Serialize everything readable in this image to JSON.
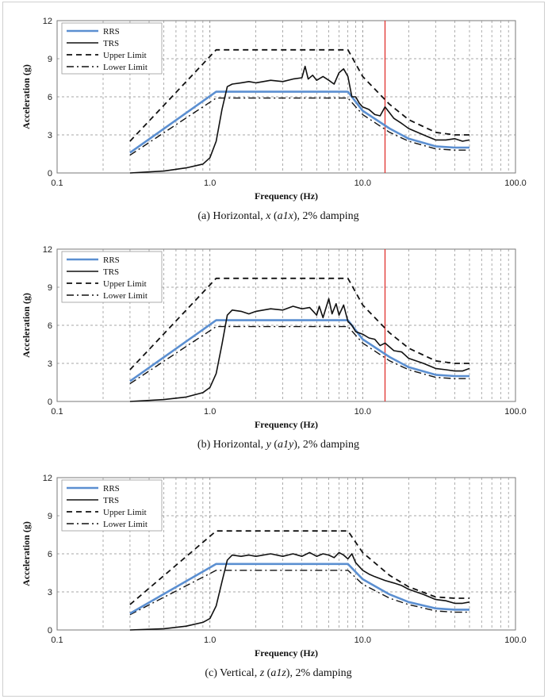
{
  "figure": {
    "colors": {
      "rrs": "#5b8fd1",
      "trs": "#111111",
      "limits": "#111111",
      "marker": "#e0312e",
      "grid": "#8a8a8a",
      "frame": "#cfcfcf"
    }
  },
  "chart_data": [
    {
      "type": "line",
      "caption": "(a)  Horizontal, x (a1x), 2% damping",
      "caption_parts": {
        "prefix": "(a)  Horizontal, ",
        "var": "x",
        "mid": " (",
        "var2": "a1x",
        "suffix": "), 2% damping"
      },
      "xlabel": "Frequency (Hz)",
      "ylabel": "Acceleration (g)",
      "xscale": "log",
      "xlim": [
        0.1,
        100
      ],
      "ylim": [
        0,
        12
      ],
      "xticks": [
        "0.1",
        "1.0",
        "10.0",
        "100.0"
      ],
      "yticks": [
        "0",
        "3",
        "6",
        "9",
        "12"
      ],
      "grid": "vertical-dashed",
      "legend": "top-left",
      "vline": 14,
      "series": [
        {
          "name": "RRS",
          "style": "solid-blue",
          "x": [
            0.3,
            1.1,
            8,
            10,
            15,
            20,
            30,
            40,
            50
          ],
          "y": [
            1.6,
            6.4,
            6.4,
            4.9,
            3.5,
            2.7,
            2.1,
            2.0,
            2.0
          ]
        },
        {
          "name": "TRS",
          "style": "solid-black",
          "x": [
            0.3,
            0.5,
            0.7,
            0.9,
            1.0,
            1.1,
            1.2,
            1.3,
            1.4,
            1.6,
            1.8,
            2.0,
            2.5,
            3.0,
            3.5,
            4.0,
            4.2,
            4.4,
            4.7,
            5.0,
            5.5,
            6.0,
            6.5,
            7.0,
            7.5,
            8.0,
            8.5,
            9.0,
            9.5,
            10,
            11,
            12,
            13,
            14,
            16,
            18,
            20,
            25,
            30,
            35,
            40,
            45,
            50
          ],
          "y": [
            0.0,
            0.15,
            0.4,
            0.7,
            1.2,
            2.5,
            5.0,
            6.8,
            7.0,
            7.1,
            7.2,
            7.1,
            7.3,
            7.2,
            7.4,
            7.5,
            8.4,
            7.4,
            7.7,
            7.3,
            7.6,
            7.3,
            7.0,
            7.9,
            8.2,
            7.6,
            6.0,
            6.0,
            5.5,
            5.2,
            5.0,
            4.6,
            4.5,
            5.2,
            4.3,
            3.9,
            3.5,
            3.0,
            2.6,
            2.6,
            2.7,
            2.5,
            2.6
          ]
        },
        {
          "name": "Upper Limit",
          "style": "dashed",
          "x": [
            0.3,
            1.1,
            8,
            10,
            15,
            20,
            30,
            40,
            50
          ],
          "y": [
            2.5,
            9.7,
            9.7,
            7.6,
            5.4,
            4.2,
            3.2,
            3.0,
            3.0
          ]
        },
        {
          "name": "Lower Limit",
          "style": "dash-dot",
          "x": [
            0.3,
            1.1,
            8,
            10,
            15,
            20,
            30,
            40,
            50
          ],
          "y": [
            1.4,
            5.9,
            5.9,
            4.6,
            3.2,
            2.5,
            1.9,
            1.8,
            1.8
          ]
        }
      ]
    },
    {
      "type": "line",
      "caption": "(b)  Horizontal, y (a1y), 2% damping",
      "caption_parts": {
        "prefix": "(b)  Horizontal, ",
        "var": "y",
        "mid": " (",
        "var2": "a1y",
        "suffix": "), 2% damping"
      },
      "xlabel": "Frequency (Hz)",
      "ylabel": "Acceleration (g)",
      "xscale": "log",
      "xlim": [
        0.1,
        100
      ],
      "ylim": [
        0,
        12
      ],
      "xticks": [
        "0.1",
        "1.0",
        "10.0",
        "100.0"
      ],
      "yticks": [
        "0",
        "3",
        "6",
        "9",
        "12"
      ],
      "grid": "vertical-dashed",
      "legend": "top-left",
      "vline": 14,
      "series": [
        {
          "name": "RRS",
          "style": "solid-blue",
          "x": [
            0.3,
            1.1,
            8,
            10,
            15,
            20,
            30,
            40,
            50
          ],
          "y": [
            1.6,
            6.4,
            6.4,
            4.9,
            3.5,
            2.7,
            2.1,
            2.0,
            2.0
          ]
        },
        {
          "name": "TRS",
          "style": "solid-black",
          "x": [
            0.3,
            0.5,
            0.7,
            0.9,
            1.0,
            1.1,
            1.2,
            1.3,
            1.4,
            1.6,
            1.8,
            2.0,
            2.5,
            3.0,
            3.5,
            4.0,
            4.5,
            5.0,
            5.2,
            5.5,
            6.0,
            6.3,
            6.7,
            7.0,
            7.5,
            8.0,
            8.5,
            9.0,
            10,
            11,
            12,
            13,
            14,
            16,
            18,
            20,
            25,
            30,
            35,
            40,
            45,
            50
          ],
          "y": [
            0.0,
            0.15,
            0.35,
            0.7,
            1.1,
            2.2,
            4.5,
            6.8,
            7.2,
            7.1,
            6.9,
            7.1,
            7.3,
            7.2,
            7.5,
            7.3,
            7.4,
            6.8,
            7.5,
            6.6,
            8.1,
            6.9,
            7.7,
            6.8,
            7.6,
            6.3,
            6.0,
            5.5,
            5.3,
            5.0,
            4.9,
            4.4,
            4.6,
            4.0,
            3.9,
            3.4,
            3.0,
            2.6,
            2.5,
            2.4,
            2.4,
            2.6
          ]
        },
        {
          "name": "Upper Limit",
          "style": "dashed",
          "x": [
            0.3,
            1.1,
            8,
            10,
            15,
            20,
            30,
            40,
            50
          ],
          "y": [
            2.5,
            9.7,
            9.7,
            7.6,
            5.4,
            4.2,
            3.2,
            3.0,
            3.0
          ]
        },
        {
          "name": "Lower Limit",
          "style": "dash-dot",
          "x": [
            0.3,
            1.1,
            8,
            10,
            15,
            20,
            30,
            40,
            50
          ],
          "y": [
            1.4,
            5.9,
            5.9,
            4.6,
            3.2,
            2.5,
            1.9,
            1.8,
            1.8
          ]
        }
      ]
    },
    {
      "type": "line",
      "caption": "(c)  Vertical, z (a1z), 2% damping",
      "caption_parts": {
        "prefix": "(c)  Vertical, ",
        "var": "z",
        "mid": " (",
        "var2": "a1z",
        "suffix": "), 2% damping"
      },
      "xlabel": "Frequency (Hz)",
      "ylabel": "Acceleration (g)",
      "xscale": "log",
      "xlim": [
        0.1,
        100
      ],
      "ylim": [
        0,
        12
      ],
      "xticks": [
        "0.1",
        "1.0",
        "10.0",
        "100.0"
      ],
      "yticks": [
        "0",
        "3",
        "6",
        "9",
        "12"
      ],
      "grid": "vertical-dashed",
      "legend": "top-left",
      "vline": null,
      "series": [
        {
          "name": "RRS",
          "style": "solid-blue",
          "x": [
            0.3,
            1.1,
            8,
            10,
            15,
            20,
            30,
            40,
            50
          ],
          "y": [
            1.3,
            5.2,
            5.2,
            4.0,
            2.8,
            2.2,
            1.7,
            1.6,
            1.6
          ]
        },
        {
          "name": "TRS",
          "style": "solid-black",
          "x": [
            0.3,
            0.5,
            0.7,
            0.9,
            1.0,
            1.1,
            1.2,
            1.3,
            1.4,
            1.6,
            1.8,
            2.0,
            2.5,
            3.0,
            3.5,
            4.0,
            4.5,
            5.0,
            5.5,
            6.0,
            6.5,
            7.0,
            7.5,
            8.0,
            8.5,
            9.0,
            10,
            11,
            12,
            14,
            16,
            18,
            20,
            25,
            30,
            35,
            40,
            45,
            50
          ],
          "y": [
            0.0,
            0.1,
            0.3,
            0.6,
            0.9,
            1.9,
            3.8,
            5.5,
            5.9,
            5.8,
            5.9,
            5.8,
            6.0,
            5.8,
            6.0,
            5.8,
            6.1,
            5.8,
            6.0,
            5.9,
            5.7,
            6.1,
            5.9,
            5.6,
            6.0,
            5.3,
            4.7,
            4.4,
            4.2,
            3.9,
            3.7,
            3.5,
            3.2,
            2.8,
            2.4,
            2.3,
            2.1,
            2.1,
            2.2
          ]
        },
        {
          "name": "Upper Limit",
          "style": "dashed",
          "x": [
            0.3,
            1.1,
            8,
            10,
            15,
            20,
            30,
            40,
            50
          ],
          "y": [
            2.0,
            7.8,
            7.8,
            6.1,
            4.3,
            3.4,
            2.6,
            2.5,
            2.5
          ]
        },
        {
          "name": "Lower Limit",
          "style": "dash-dot",
          "x": [
            0.3,
            1.1,
            8,
            10,
            15,
            20,
            30,
            40,
            50
          ],
          "y": [
            1.2,
            4.7,
            4.7,
            3.6,
            2.5,
            2.0,
            1.5,
            1.4,
            1.4
          ]
        }
      ]
    }
  ]
}
